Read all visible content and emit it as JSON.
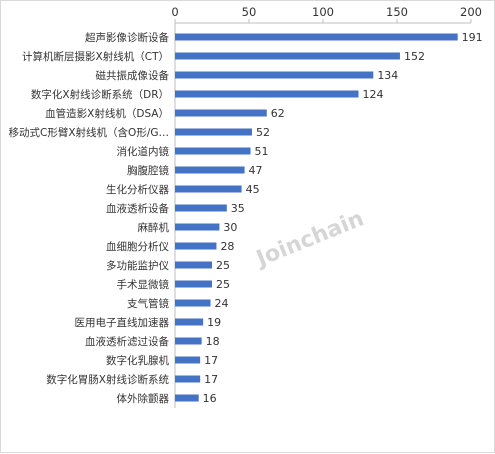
{
  "chart_data": {
    "type": "bar",
    "orientation": "horizontal",
    "categories": [
      "超声影像诊断设备",
      "计算机断层摄影X射线机（CT）",
      "磁共振成像设备",
      "数字化X射线诊断系统（DR）",
      "血管造影X射线机（DSA）",
      "移动式C形臂X射线机（含O形/G…",
      "消化道内镜",
      "胸腹腔镜",
      "生化分析仪器",
      "血液透析设备",
      "麻醉机",
      "血细胞分析仪",
      "多功能监护仪",
      "手术显微镜",
      "支气管镜",
      "医用电子直线加速器",
      "血液透析滤过设备",
      "数字化乳腺机",
      "数字化胃肠X射线诊断系统",
      "体外除颤器"
    ],
    "values": [
      191,
      152,
      134,
      124,
      62,
      52,
      51,
      47,
      45,
      35,
      30,
      28,
      25,
      25,
      24,
      19,
      18,
      17,
      17,
      16
    ],
    "xlim": [
      0,
      200
    ],
    "x_ticks": [
      "0",
      "50",
      "100",
      "150",
      "200"
    ],
    "x_axis_position": "top",
    "grid": false,
    "bar_color": "#4472C4",
    "watermark": "Joinchain",
    "watermark_color": "#d6d6d6"
  }
}
